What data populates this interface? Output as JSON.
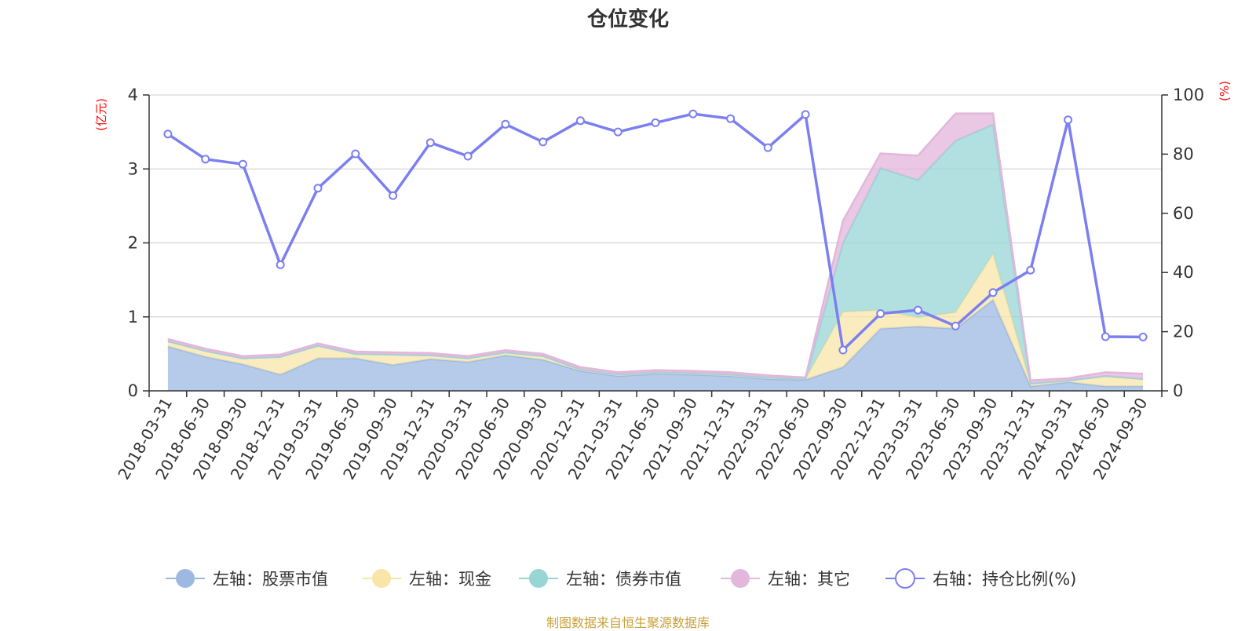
{
  "title": "仓位变化",
  "source_note": "制图数据来自恒生聚源数据库",
  "colors": {
    "stock": "#9db9e2",
    "cash": "#f8e5a8",
    "bond": "#98d6d6",
    "other": "#e3b6db",
    "ratio": "#7b7ff0",
    "grid": "#cccccc",
    "unit": "#ff0000",
    "source": "#c9a13a"
  },
  "chart_data": {
    "type": "area",
    "title": "仓位变化",
    "x": [
      "2018-03-31",
      "2018-06-30",
      "2018-09-30",
      "2018-12-31",
      "2019-03-31",
      "2019-06-30",
      "2019-09-30",
      "2019-12-31",
      "2020-03-31",
      "2020-06-30",
      "2020-09-30",
      "2020-12-31",
      "2021-03-31",
      "2021-06-30",
      "2021-09-30",
      "2021-12-31",
      "2022-03-31",
      "2022-06-30",
      "2022-09-30",
      "2022-12-31",
      "2023-03-31",
      "2023-06-30",
      "2023-09-30",
      "2023-12-31",
      "2024-03-31",
      "2024-06-30",
      "2024-09-30"
    ],
    "left_axis": {
      "unit": "(亿元)",
      "ylim": [
        0,
        4
      ],
      "ticks": [
        "0",
        "1",
        "2",
        "3",
        "4"
      ]
    },
    "right_axis": {
      "unit": "(%)",
      "ylim": [
        0,
        100
      ],
      "ticks": [
        "0",
        "20",
        "40",
        "60",
        "80",
        "100"
      ]
    },
    "series": [
      {
        "name": "左轴：股票市值",
        "axis": "left",
        "stack": true,
        "color_key": "stock",
        "values": [
          0.6,
          0.46,
          0.36,
          0.22,
          0.44,
          0.44,
          0.35,
          0.43,
          0.39,
          0.48,
          0.42,
          0.27,
          0.2,
          0.23,
          0.22,
          0.2,
          0.16,
          0.15,
          0.32,
          0.84,
          0.87,
          0.84,
          1.23,
          0.06,
          0.12,
          0.06,
          0.06
        ]
      },
      {
        "name": "左轴：现金",
        "axis": "left",
        "stack": true,
        "color_key": "cash",
        "values": [
          0.07,
          0.08,
          0.08,
          0.24,
          0.17,
          0.06,
          0.14,
          0.05,
          0.05,
          0.04,
          0.05,
          0.02,
          0.02,
          0.02,
          0.02,
          0.02,
          0.02,
          0.01,
          0.75,
          0.25,
          0.12,
          0.22,
          0.62,
          0.04,
          0.02,
          0.14,
          0.1
        ]
      },
      {
        "name": "左轴：债券市值",
        "axis": "left",
        "stack": true,
        "color_key": "bond",
        "values": [
          0,
          0,
          0,
          0,
          0,
          0,
          0,
          0,
          0,
          0,
          0,
          0,
          0,
          0,
          0,
          0,
          0,
          0,
          0.93,
          1.92,
          1.86,
          2.32,
          1.75,
          0,
          0,
          0,
          0
        ]
      },
      {
        "name": "左轴：其它",
        "axis": "left",
        "stack": true,
        "color_key": "other",
        "values": [
          0.03,
          0.03,
          0.03,
          0.03,
          0.03,
          0.03,
          0.03,
          0.03,
          0.03,
          0.03,
          0.03,
          0.03,
          0.03,
          0.03,
          0.03,
          0.03,
          0.03,
          0.02,
          0.3,
          0.2,
          0.33,
          0.37,
          0.15,
          0.04,
          0.03,
          0.05,
          0.07
        ]
      },
      {
        "name": "右轴：持仓比例(%)",
        "axis": "right",
        "type": "line",
        "color_key": "ratio",
        "values": [
          86.8,
          78.3,
          76.6,
          42.6,
          68.5,
          80.1,
          66.0,
          83.9,
          79.3,
          90.1,
          84.1,
          91.3,
          87.5,
          90.6,
          93.6,
          92.0,
          82.2,
          93.4,
          13.8,
          26.1,
          27.3,
          21.9,
          33.2,
          40.8,
          91.6,
          18.3,
          18.2
        ]
      }
    ],
    "legend": {
      "position": "bottom",
      "items": [
        "左轴：股票市值",
        "左轴：现金",
        "左轴：债券市值",
        "左轴：其它",
        "右轴：持仓比例(%)"
      ]
    },
    "grid": true
  }
}
